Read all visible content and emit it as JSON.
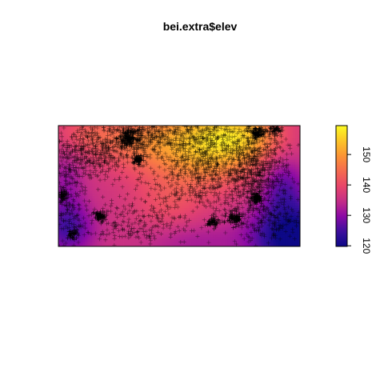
{
  "chart_data": {
    "type": "heatmap",
    "title": "bei.extra$elev",
    "xlabel": "",
    "ylabel": "",
    "x_range": [
      0,
      1000
    ],
    "y_range": [
      0,
      500
    ],
    "colorbar": {
      "range": [
        119.8,
        159.5
      ],
      "ticks": [
        120,
        130,
        140,
        150
      ],
      "tick_labels": [
        "120",
        "130",
        "140",
        "150"
      ],
      "palette": [
        "#0d0887",
        "#3b0f9e",
        "#8b0aa5",
        "#c42e87",
        "#e8466a",
        "#f56a4f",
        "#fb9435",
        "#fcc527",
        "#fcfb24"
      ]
    },
    "field_components": [
      {
        "cx": 600,
        "cy": 430,
        "sx": 220,
        "sy": 170,
        "amp": 18
      },
      {
        "cx": 780,
        "cy": 460,
        "sx": 150,
        "sy": 110,
        "amp": 10
      },
      {
        "cx": 330,
        "cy": 430,
        "sx": 160,
        "sy": 120,
        "amp": 7
      },
      {
        "cx": 130,
        "cy": 470,
        "sx": 140,
        "sy": 90,
        "amp": 6
      },
      {
        "cx": 450,
        "cy": 180,
        "sx": 140,
        "sy": 120,
        "amp": 4
      },
      {
        "cx": 970,
        "cy": 40,
        "sx": 170,
        "sy": 150,
        "amp": -18
      },
      {
        "cx": 930,
        "cy": 260,
        "sx": 90,
        "sy": 120,
        "amp": -8
      },
      {
        "cx": 40,
        "cy": 70,
        "sx": 110,
        "sy": 110,
        "amp": -10
      },
      {
        "cx": 30,
        "cy": 260,
        "sx": 80,
        "sy": 150,
        "amp": -5
      },
      {
        "cx": 560,
        "cy": 20,
        "sx": 220,
        "sy": 80,
        "amp": -4
      }
    ],
    "field_base": 136,
    "points_symbol": "+",
    "points_color": "#000000",
    "point_clusters": [
      {
        "cx": 600,
        "cy": 340,
        "rx": 230,
        "ry": 190,
        "n": 900
      },
      {
        "cx": 820,
        "cy": 300,
        "rx": 120,
        "ry": 180,
        "n": 650
      },
      {
        "cx": 140,
        "cy": 390,
        "rx": 150,
        "ry": 110,
        "n": 450
      },
      {
        "cx": 330,
        "cy": 440,
        "rx": 120,
        "ry": 60,
        "n": 220
      },
      {
        "cx": 280,
        "cy": 100,
        "rx": 260,
        "ry": 90,
        "n": 260
      },
      {
        "cx": 30,
        "cy": 240,
        "rx": 60,
        "ry": 220,
        "n": 180
      },
      {
        "cx": 880,
        "cy": 100,
        "rx": 120,
        "ry": 90,
        "n": 140
      },
      {
        "cx": 500,
        "cy": 470,
        "rx": 300,
        "ry": 40,
        "n": 150
      }
    ],
    "dense_blobs": [
      {
        "cx": 290,
        "cy": 450,
        "rx": 40,
        "ry": 35,
        "n": 140
      },
      {
        "cx": 330,
        "cy": 360,
        "rx": 22,
        "ry": 20,
        "n": 60
      },
      {
        "cx": 825,
        "cy": 470,
        "rx": 40,
        "ry": 25,
        "n": 90
      },
      {
        "cx": 820,
        "cy": 200,
        "rx": 25,
        "ry": 25,
        "n": 70
      },
      {
        "cx": 730,
        "cy": 115,
        "rx": 35,
        "ry": 30,
        "n": 80
      },
      {
        "cx": 640,
        "cy": 100,
        "rx": 25,
        "ry": 25,
        "n": 50
      },
      {
        "cx": 170,
        "cy": 125,
        "rx": 25,
        "ry": 25,
        "n": 50
      },
      {
        "cx": 60,
        "cy": 50,
        "rx": 25,
        "ry": 20,
        "n": 40
      },
      {
        "cx": 20,
        "cy": 210,
        "rx": 18,
        "ry": 25,
        "n": 40
      },
      {
        "cx": 900,
        "cy": 480,
        "rx": 25,
        "ry": 20,
        "n": 40
      }
    ]
  }
}
